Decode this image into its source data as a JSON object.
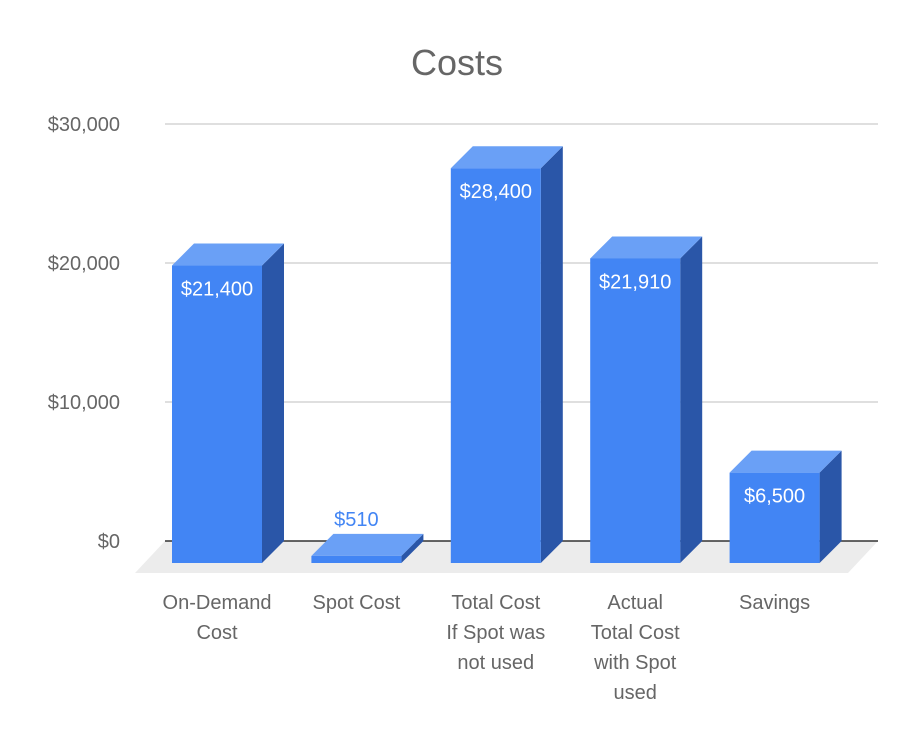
{
  "chart_data": {
    "type": "bar",
    "title": "Costs",
    "xlabel": "",
    "ylabel": "",
    "ylim": [
      0,
      30000
    ],
    "yticks": [
      0,
      10000,
      20000,
      30000
    ],
    "ytick_labels": [
      "$0",
      "$10,000",
      "$20,000",
      "$30,000"
    ],
    "grid": true,
    "legend": "none",
    "style": "3d",
    "categories": [
      [
        "On-Demand",
        "Cost"
      ],
      [
        "Spot Cost"
      ],
      [
        "Total Cost",
        "If Spot was",
        "not used"
      ],
      [
        "Actual",
        "Total Cost",
        "with Spot",
        "used"
      ],
      [
        "Savings"
      ]
    ],
    "values": [
      21400,
      510,
      28400,
      21910,
      6500
    ],
    "data_labels": [
      "$21,400",
      "$510",
      "$28,400",
      "$21,910",
      "$6,500"
    ],
    "colors": {
      "bar_front": "#4285f4",
      "bar_top": "#6aa0f6",
      "bar_side": "#2a56a8",
      "floor": "#ececec",
      "grid": "#cccccc",
      "baseline": "#333333",
      "text": "#666666",
      "label_inside": "#ffffff"
    }
  }
}
